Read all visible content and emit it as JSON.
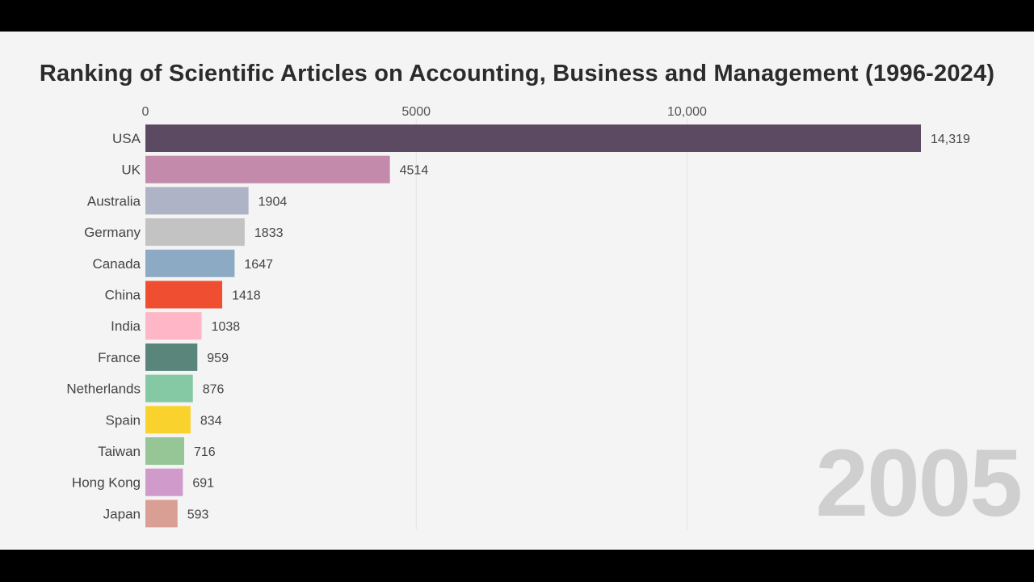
{
  "chart_data": {
    "type": "bar",
    "orientation": "horizontal",
    "title": "Ranking of Scientific Articles on Accounting, Business and Management (1996-2024)",
    "year": "2005",
    "x_ticks": [
      0,
      5000,
      10000
    ],
    "x_tick_labels": [
      "0",
      "5000",
      "10,000"
    ],
    "xlim": [
      0,
      14319
    ],
    "grid": true,
    "categories": [
      "USA",
      "UK",
      "Australia",
      "Germany",
      "Canada",
      "China",
      "India",
      "France",
      "Netherlands",
      "Spain",
      "Taiwan",
      "Hong Kong",
      "Japan"
    ],
    "values": [
      14319,
      4514,
      1904,
      1833,
      1647,
      1418,
      1038,
      959,
      876,
      834,
      716,
      691,
      593
    ],
    "value_labels": [
      "14,319",
      "4514",
      "1904",
      "1833",
      "1647",
      "1418",
      "1038",
      "959",
      "876",
      "834",
      "716",
      "691",
      "593"
    ],
    "colors": [
      "#5c4a63",
      "#c48aab",
      "#aeb4c6",
      "#c3c3c3",
      "#8caac3",
      "#f04e30",
      "#ffb6c6",
      "#5a857a",
      "#85c8a4",
      "#fad22e",
      "#96c596",
      "#d09acb",
      "#d99e94"
    ]
  }
}
